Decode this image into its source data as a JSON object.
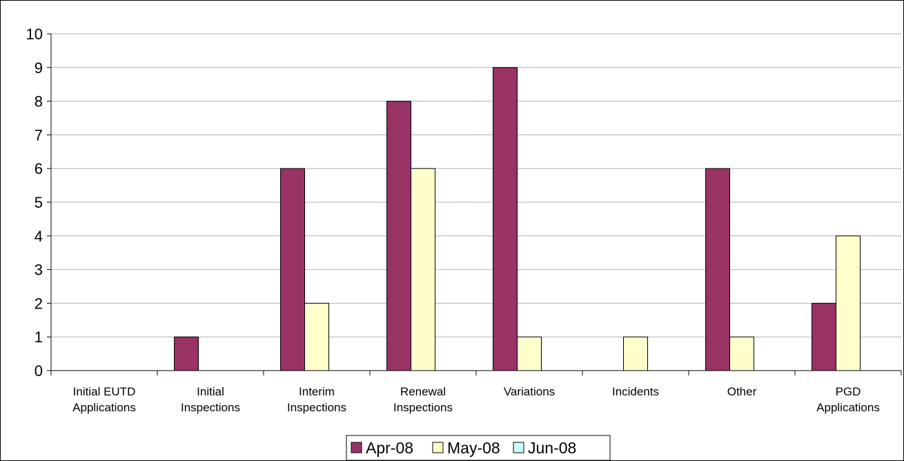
{
  "chart_data": {
    "type": "bar",
    "title": "",
    "xlabel": "",
    "ylabel": "",
    "ylim": [
      0,
      10
    ],
    "yticks": [
      0,
      1,
      2,
      3,
      4,
      5,
      6,
      7,
      8,
      9,
      10
    ],
    "grid": true,
    "legend_position": "bottom",
    "categories": [
      [
        "Initial EUTD",
        "Applications"
      ],
      [
        "Initial",
        "Inspections"
      ],
      [
        "Interim",
        "Inspections"
      ],
      [
        "Renewal",
        "Inspections"
      ],
      [
        "Variations"
      ],
      [
        "Incidents"
      ],
      [
        "Other"
      ],
      [
        "PGD",
        "Applications"
      ]
    ],
    "series": [
      {
        "name": "Apr-08",
        "color": "#993366",
        "values": [
          0,
          1,
          6,
          8,
          9,
          0,
          6,
          2
        ]
      },
      {
        "name": "May-08",
        "color": "#FFFFCC",
        "values": [
          0,
          0,
          2,
          6,
          1,
          1,
          1,
          4
        ]
      },
      {
        "name": "Jun-08",
        "color": "#CCFFFF",
        "values": [
          0,
          0,
          0,
          0,
          0,
          0,
          0,
          0
        ]
      }
    ]
  }
}
